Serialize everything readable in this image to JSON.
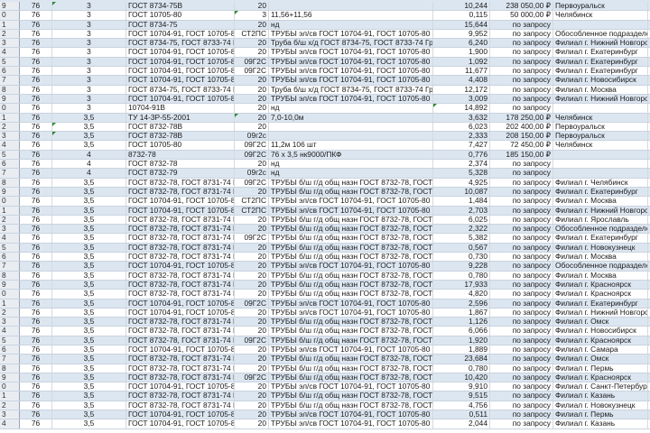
{
  "colors": {
    "band": "#dce6f1",
    "comment_marker": "#2e8b2e"
  },
  "rows": [
    {
      "rh": "9",
      "a": "76",
      "b": "3",
      "c": "ГОСТ 8734-75В",
      "d": "20",
      "e": "",
      "f": "10,244",
      "g": "238 050,00 ₽",
      "h": "Первоуральск"
    },
    {
      "rh": "0",
      "a": "76",
      "b": "3",
      "c": "ГОСТ 10705-80",
      "d": "3",
      "e": "11,56+11,56",
      "f": "0,115",
      "g": "50 000,00 ₽",
      "h": "Челябинск"
    },
    {
      "rh": "1",
      "a": "76",
      "b": "3",
      "c": "ГОСТ 8734-75",
      "d": "20",
      "e": "нд",
      "f": "15,644",
      "g": "по запросу",
      "h": ""
    },
    {
      "rh": "2",
      "a": "76",
      "b": "3",
      "c": "ГОСТ 10704-91, ГОСТ 10705-80 Гр",
      "d": "СТ2ПС",
      "e": "ТРУБЫ эл/св ГОСТ 10704-91, ГОСТ 10705-80 Гр",
      "f": "9,952",
      "g": "по запросу",
      "h": "Обособленное подразделен"
    },
    {
      "rh": "3",
      "a": "76",
      "b": "3",
      "c": "ГОСТ 8734-75, ГОСТ 8733-74 Гр",
      "d": "20",
      "e": "Труба б/ш х/д ГОСТ 8734-75, ГОСТ 8733-74 Груп",
      "f": "6,240",
      "g": "по запросу",
      "h": "Филиал г. Нижний Новгород"
    },
    {
      "rh": "4",
      "a": "76",
      "b": "3",
      "c": "ГОСТ 10704-91, ГОСТ 10705-80 Гр",
      "d": "20",
      "e": "ТРУБЫ эл/св ГОСТ 10704-91, ГОСТ 10705-80 Гр",
      "f": "1,900",
      "g": "по запросу",
      "h": "Филиал г. Екатеринбург"
    },
    {
      "rh": "5",
      "a": "76",
      "b": "3",
      "c": "ГОСТ 10704-91, ГОСТ 10705-80 Гр",
      "d": "09Г2С",
      "e": "ТРУБЫ эл/св ГОСТ 10704-91, ГОСТ 10705-80 Гр",
      "f": "1,092",
      "g": "по запросу",
      "h": "Филиал г. Екатеринбург"
    },
    {
      "rh": "6",
      "a": "76",
      "b": "3",
      "c": "ГОСТ 10704-91, ГОСТ 10705-80 Гр",
      "d": "09Г2С",
      "e": "ТРУБЫ эл/св ГОСТ 10704-91, ГОСТ 10705-80 Гр",
      "f": "11,677",
      "g": "по запросу",
      "h": "Филиал г. Екатеринбург"
    },
    {
      "rh": "7",
      "a": "76",
      "b": "3",
      "c": "ГОСТ 10704-91, ГОСТ 10705-80 Гр",
      "d": "20",
      "e": "ТРУБЫ эл/св ГОСТ 10704-91, ГОСТ 10705-80 Гр",
      "f": "4,408",
      "g": "по запросу",
      "h": "Филиал г. Новосибирск"
    },
    {
      "rh": "8",
      "a": "76",
      "b": "3",
      "c": "ГОСТ 8734-75, ГОСТ 8733-74 Гр",
      "d": "20",
      "e": "Труба б/ш х/д ГОСТ 8734-75, ГОСТ 8733-74 Груп",
      "f": "12,172",
      "g": "по запросу",
      "h": "Филиал г. Москва"
    },
    {
      "rh": "9",
      "a": "76",
      "b": "3",
      "c": "ГОСТ 10704-91, ГОСТ 10705-80 Гр",
      "d": "20",
      "e": "ТРУБЫ эл/св ГОСТ 10704-91, ГОСТ 10705-80 Гр",
      "f": "3,009",
      "g": "по запросу",
      "h": "Филиал г. Нижний Новгород"
    },
    {
      "rh": "0",
      "a": "76",
      "b": "3",
      "c": "10704-91В",
      "d": "20",
      "e": "нд",
      "f": "14,892",
      "g": "по запросу",
      "h": ""
    },
    {
      "rh": "1",
      "a": "76",
      "b": "3,5",
      "c": "ТУ 14-3Р-55-2001",
      "d": "20",
      "e": "7,0-10,0м",
      "f": "3,632",
      "g": "178 250,00 ₽",
      "h": "Челябинск"
    },
    {
      "rh": "2",
      "a": "76",
      "b": "3,5",
      "c": "ГОСТ 8732-78В",
      "d": "20",
      "e": "",
      "f": "6,023",
      "g": "202 400,00 ₽",
      "h": "Первоуральск"
    },
    {
      "rh": "3",
      "a": "76",
      "b": "3,5",
      "c": "ГОСТ 8732-78В",
      "d": "09г2с",
      "e": "",
      "f": "2,333",
      "g": "208 150,00 ₽",
      "h": "Первоуральск"
    },
    {
      "rh": "4",
      "a": "76",
      "b": "3,5",
      "c": "ГОСТ 10705-80",
      "d": "09Г2С",
      "e": "11,2м 106 шт",
      "f": "7,427",
      "g": "72 450,00 ₽",
      "h": "Челябинск"
    },
    {
      "rh": "5",
      "a": "76",
      "b": "4",
      "c": "8732-78",
      "d": "09Г2С",
      "e": "76 х 3,5 нк9000/ПКФ",
      "f": "0,776",
      "g": "185 150,00 ₽",
      "h": ""
    },
    {
      "rh": "6",
      "a": "76",
      "b": "4",
      "c": "ГОСТ 8732-78",
      "d": "20",
      "e": "нд",
      "f": "2,374",
      "g": "по запросу",
      "h": ""
    },
    {
      "rh": "7",
      "a": "76",
      "b": "4",
      "c": "ГОСТ 8732-79",
      "d": "09г2с",
      "e": "нд",
      "f": "5,328",
      "g": "по запросу",
      "h": ""
    },
    {
      "rh": "8",
      "a": "76",
      "b": "3,5",
      "c": "ГОСТ 8732-78, ГОСТ 8731-74 Гр",
      "d": "09Г2С",
      "e": "ТРУБЫ б/ш г/д общ назн ГОСТ 8732-78, ГОСТ 87",
      "f": "4,925",
      "g": "по запросу",
      "h": "Филиал г. Челябинск"
    },
    {
      "rh": "9",
      "a": "76",
      "b": "3,5",
      "c": "ГОСТ 8732-78, ГОСТ 8731-74 Гр",
      "d": "20",
      "e": "ТРУБЫ б/ш г/д общ назн ГОСТ 8732-78, ГОСТ 87",
      "f": "10,087",
      "g": "по запросу",
      "h": "Филиал г. Екатеринбург"
    },
    {
      "rh": "0",
      "a": "76",
      "b": "3,5",
      "c": "ГОСТ 10704-91, ГОСТ 10705-80 Гр",
      "d": "СТ2ПС",
      "e": "ТРУБЫ эл/св ГОСТ 10704-91, ГОСТ 10705-80 Гр",
      "f": "1,484",
      "g": "по запросу",
      "h": "Филиал г. Москва"
    },
    {
      "rh": "1",
      "a": "76",
      "b": "3,5",
      "c": "ГОСТ 10704-91, ГОСТ 10705-80 Гр",
      "d": "СТ2ПС",
      "e": "ТРУБЫ эл/св ГОСТ 10704-91, ГОСТ 10705-80 Гр",
      "f": "2,703",
      "g": "по запросу",
      "h": "Филиал г. Нижний Новгород"
    },
    {
      "rh": "2",
      "a": "76",
      "b": "3,5",
      "c": "ГОСТ 8732-78, ГОСТ 8731-74 Гр",
      "d": "20",
      "e": "ТРУБЫ б/ш г/д общ назн ГОСТ 8732-78, ГОСТ 87",
      "f": "6,025",
      "g": "по запросу",
      "h": "Филиал г. Ярославль"
    },
    {
      "rh": "3",
      "a": "76",
      "b": "3,5",
      "c": "ГОСТ 8732-78, ГОСТ 8731-74 Гр",
      "d": "20",
      "e": "ТРУБЫ б/ш г/д общ назн ГОСТ 8732-78, ГОСТ 87",
      "f": "2,322",
      "g": "по запросу",
      "h": "Обособленное подразделен"
    },
    {
      "rh": "4",
      "a": "76",
      "b": "3,5",
      "c": "ГОСТ 8732-78, ГОСТ 8731-74 Гр",
      "d": "09Г2С",
      "e": "ТРУБЫ б/ш г/д общ назн ГОСТ 8732-78, ГОСТ 87",
      "f": "5,382",
      "g": "по запросу",
      "h": "Филиал г. Екатеринбург"
    },
    {
      "rh": "5",
      "a": "76",
      "b": "3,5",
      "c": "ГОСТ 8732-78, ГОСТ 8731-74 Гр",
      "d": "20",
      "e": "ТРУБЫ б/ш г/д общ назн ГОСТ 8732-78, ГОСТ 87",
      "f": "0,567",
      "g": "по запросу",
      "h": "Филиал г. Новокузнецк"
    },
    {
      "rh": "6",
      "a": "76",
      "b": "3,5",
      "c": "ГОСТ 8732-78, ГОСТ 8731-74 Гр",
      "d": "20",
      "e": "ТРУБЫ б/ш г/д общ назн ГОСТ 8732-78, ГОСТ 87",
      "f": "0,730",
      "g": "по запросу",
      "h": "Филиал г. Москва"
    },
    {
      "rh": "7",
      "a": "76",
      "b": "3,5",
      "c": "ГОСТ 10704-91, ГОСТ 10705-80 Гр",
      "d": "20",
      "e": "ТРУБЫ эл/св ГОСТ 10704-91, ГОСТ 10705-80 Гр",
      "f": "9,228",
      "g": "по запросу",
      "h": "Обособленное подразделен"
    },
    {
      "rh": "8",
      "a": "76",
      "b": "3,5",
      "c": "ГОСТ 8732-78, ГОСТ 8731-74 Гр",
      "d": "20",
      "e": "ТРУБЫ б/ш г/д общ назн ГОСТ 8732-78, ГОСТ 87",
      "f": "0,780",
      "g": "по запросу",
      "h": "Филиал г. Москва"
    },
    {
      "rh": "9",
      "a": "76",
      "b": "3,5",
      "c": "ГОСТ 8732-78, ГОСТ 8731-74 Гр",
      "d": "20",
      "e": "ТРУБЫ б/ш г/д общ назн ГОСТ 8732-78, ГОСТ 87",
      "f": "17,933",
      "g": "по запросу",
      "h": "Филиал г. Красноярск"
    },
    {
      "rh": "0",
      "a": "76",
      "b": "3,5",
      "c": "ГОСТ 8732-78, ГОСТ 8731-74 Гр",
      "d": "20",
      "e": "ТРУБЫ б/ш г/д общ назн ГОСТ 8732-78, ГОСТ 87",
      "f": "4,820",
      "g": "по запросу",
      "h": "Филиал г. Красноярск"
    },
    {
      "rh": "1",
      "a": "76",
      "b": "3,5",
      "c": "ГОСТ 10704-91, ГОСТ 10705-80 Гр",
      "d": "09Г2С",
      "e": "ТРУБЫ эл/св ГОСТ 10704-91, ГОСТ 10705-80 Гр",
      "f": "2,596",
      "g": "по запросу",
      "h": "Филиал г. Екатеринбург"
    },
    {
      "rh": "2",
      "a": "76",
      "b": "3,5",
      "c": "ГОСТ 10704-91, ГОСТ 10705-80 Гр",
      "d": "20",
      "e": "ТРУБЫ эл/св ГОСТ 10704-91, ГОСТ 10705-80 Гр",
      "f": "1,867",
      "g": "по запросу",
      "h": "Филиал г. Нижний Новгород"
    },
    {
      "rh": "3",
      "a": "76",
      "b": "3,5",
      "c": "ГОСТ 8732-78, ГОСТ 8731-74 Гр",
      "d": "20",
      "e": "ТРУБЫ б/ш г/д общ назн ГОСТ 8732-78, ГОСТ 87",
      "f": "1,126",
      "g": "по запросу",
      "h": "Филиал г. Омск"
    },
    {
      "rh": "4",
      "a": "76",
      "b": "3,5",
      "c": "ГОСТ 8732-78, ГОСТ 8731-74 Гр",
      "d": "20",
      "e": "ТРУБЫ б/ш г/д общ назн ГОСТ 8732-78, ГОСТ 87",
      "f": "6,066",
      "g": "по запросу",
      "h": "Филиал г. Новосибирск"
    },
    {
      "rh": "5",
      "a": "76",
      "b": "3,5",
      "c": "ГОСТ 8732-78, ГОСТ 8731-74 Гр",
      "d": "09Г2С",
      "e": "ТРУБЫ б/ш г/д общ назн ГОСТ 8732-78, ГОСТ 87",
      "f": "1,920",
      "g": "по запросу",
      "h": "Филиал г. Красноярск"
    },
    {
      "rh": "6",
      "a": "76",
      "b": "3,5",
      "c": "ГОСТ 10704-91, ГОСТ 10705-80 Гр",
      "d": "20",
      "e": "ТРУБЫ эл/св ГОСТ 10704-91, ГОСТ 10705-80 Гр",
      "f": "1,889",
      "g": "по запросу",
      "h": "Филиал г. Самара"
    },
    {
      "rh": "7",
      "a": "76",
      "b": "3,5",
      "c": "ГОСТ 8732-78, ГОСТ 8731-74 Гр",
      "d": "20",
      "e": "ТРУБЫ б/ш г/д общ назн ГОСТ 8732-78, ГОСТ 87",
      "f": "23,684",
      "g": "по запросу",
      "h": "Филиал г. Омск"
    },
    {
      "rh": "8",
      "a": "76",
      "b": "3,5",
      "c": "ГОСТ 8732-78, ГОСТ 8731-74 Гр",
      "d": "20",
      "e": "ТРУБЫ б/ш г/д общ назн ГОСТ 8732-78, ГОСТ 87",
      "f": "0,780",
      "g": "по запросу",
      "h": "Филиал г. Пермь"
    },
    {
      "rh": "9",
      "a": "76",
      "b": "3,5",
      "c": "ГОСТ 8732-78, ГОСТ 8731-74 Гр",
      "d": "09Г2С",
      "e": "ТРУБЫ б/ш г/д общ назн ГОСТ 8732-78, ГОСТ 87",
      "f": "10,420",
      "g": "по запросу",
      "h": "Филиал г. Красноярск"
    },
    {
      "rh": "0",
      "a": "76",
      "b": "3,5",
      "c": "ГОСТ 10704-91, ГОСТ 10705-80 Гр",
      "d": "20",
      "e": "ТРУБЫ эл/св ГОСТ 10704-91, ГОСТ 10705-80 Гр",
      "f": "9,910",
      "g": "по запросу",
      "h": "Филиал г. Санкт-Петербург"
    },
    {
      "rh": "1",
      "a": "76",
      "b": "3,5",
      "c": "ГОСТ 8732-78, ГОСТ 8731-74 Гр",
      "d": "20",
      "e": "ТРУБЫ б/ш г/д общ назн ГОСТ 8732-78, ГОСТ 87",
      "f": "9,515",
      "g": "по запросу",
      "h": "Филиал г. Казань"
    },
    {
      "rh": "2",
      "a": "76",
      "b": "3,5",
      "c": "ГОСТ 8732-78, ГОСТ 8731-74 Гр",
      "d": "20",
      "e": "ТРУБЫ б/ш г/д общ назн ГОСТ 8732-78, ГОСТ 87",
      "f": "4,756",
      "g": "по запросу",
      "h": "Филиал г. Новокузнецк"
    },
    {
      "rh": "3",
      "a": "76",
      "b": "3,5",
      "c": "ГОСТ 10704-91, ГОСТ 10705-80 Гр",
      "d": "20",
      "e": "ТРУБЫ эл/св ГОСТ 10704-91, ГОСТ 10705-80 Гр",
      "f": "0,511",
      "g": "по запросу",
      "h": "Филиал г. Пермь"
    },
    {
      "rh": "4",
      "a": "76",
      "b": "3,5",
      "c": "ГОСТ 10704-91, ГОСТ 10705-80 Гр",
      "d": "20",
      "e": "ТРУБЫ эл/св ГОСТ 10704-91, ГОСТ 10705-80 Гр",
      "f": "2,044",
      "g": "по запросу",
      "h": "Филиал г. Казань"
    }
  ],
  "comment_markers": [
    {
      "row": 0,
      "col": "b"
    },
    {
      "row": 1,
      "col": "d"
    },
    {
      "row": 11,
      "col": "f"
    },
    {
      "row": 12,
      "col": "d"
    },
    {
      "row": 13,
      "col": "b"
    },
    {
      "row": 14,
      "col": "b"
    }
  ]
}
